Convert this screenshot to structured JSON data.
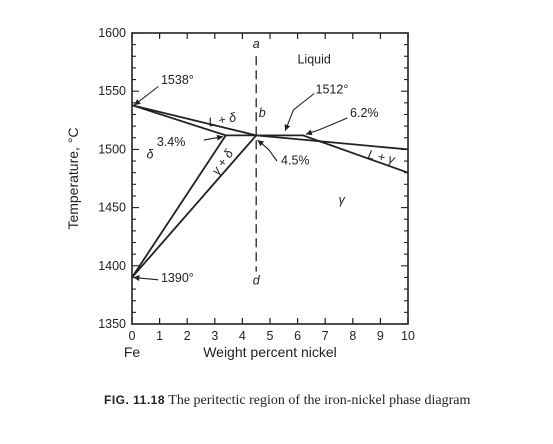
{
  "chart_data": {
    "type": "line",
    "xlabel": "Weight percent nickel",
    "x_start_label": "Fe",
    "ylabel": "Temperature, °C",
    "xlim": [
      0,
      10
    ],
    "ylim": [
      1350,
      1600
    ],
    "x_ticks": [
      0,
      1,
      2,
      3,
      4,
      5,
      6,
      7,
      8,
      9,
      10
    ],
    "y_ticks": [
      1350,
      1400,
      1450,
      1500,
      1550,
      1600
    ],
    "grid": false,
    "series": [
      {
        "points": [
          [
            0,
            1538
          ],
          [
            4.5,
            1512
          ],
          [
            10,
            1500
          ]
        ]
      },
      {
        "points": [
          [
            0,
            1538
          ],
          [
            3.4,
            1512
          ],
          [
            4.5,
            1512
          ]
        ]
      },
      {
        "points": [
          [
            0,
            1390
          ],
          [
            3.4,
            1512
          ]
        ]
      },
      {
        "points": [
          [
            0,
            1390
          ],
          [
            4.5,
            1512
          ]
        ]
      },
      {
        "points": [
          [
            4.5,
            1512
          ],
          [
            6.2,
            1512
          ],
          [
            10,
            1480
          ]
        ]
      }
    ],
    "peritectic_line": {
      "x": 4.5,
      "y_top": 1580,
      "y_bottom": 1395
    },
    "phase_labels": [
      {
        "text": "Liquid",
        "x": 6.6,
        "y": 1574
      },
      {
        "text": "L + δ",
        "x": 3.3,
        "y": 1522
      },
      {
        "text": "δ",
        "x": 0.65,
        "y": 1492
      },
      {
        "text": "γ + δ",
        "x": 3.4,
        "y": 1487
      },
      {
        "text": "L + γ",
        "x": 9.0,
        "y": 1490
      },
      {
        "text": "γ",
        "x": 7.6,
        "y": 1453
      }
    ],
    "annotations": [
      {
        "text": "a",
        "x": 4.5,
        "y": 1587
      },
      {
        "text": "b",
        "x": 4.72,
        "y": 1528
      },
      {
        "text": "d",
        "x": 4.5,
        "y": 1384
      },
      {
        "text": "1538°",
        "x": 1.05,
        "y": 1556
      },
      {
        "text": "1512°",
        "x": 6.65,
        "y": 1548
      },
      {
        "text": "6.2%",
        "x": 7.9,
        "y": 1528
      },
      {
        "text": "3.4%",
        "x": 0.9,
        "y": 1503
      },
      {
        "text": "4.5%",
        "x": 5.4,
        "y": 1487
      },
      {
        "text": "1390°",
        "x": 1.05,
        "y": 1386
      }
    ]
  },
  "caption": {
    "fignum": "FIG. 11.18",
    "text": " The peritectic region of the iron-nickel phase diagram"
  }
}
